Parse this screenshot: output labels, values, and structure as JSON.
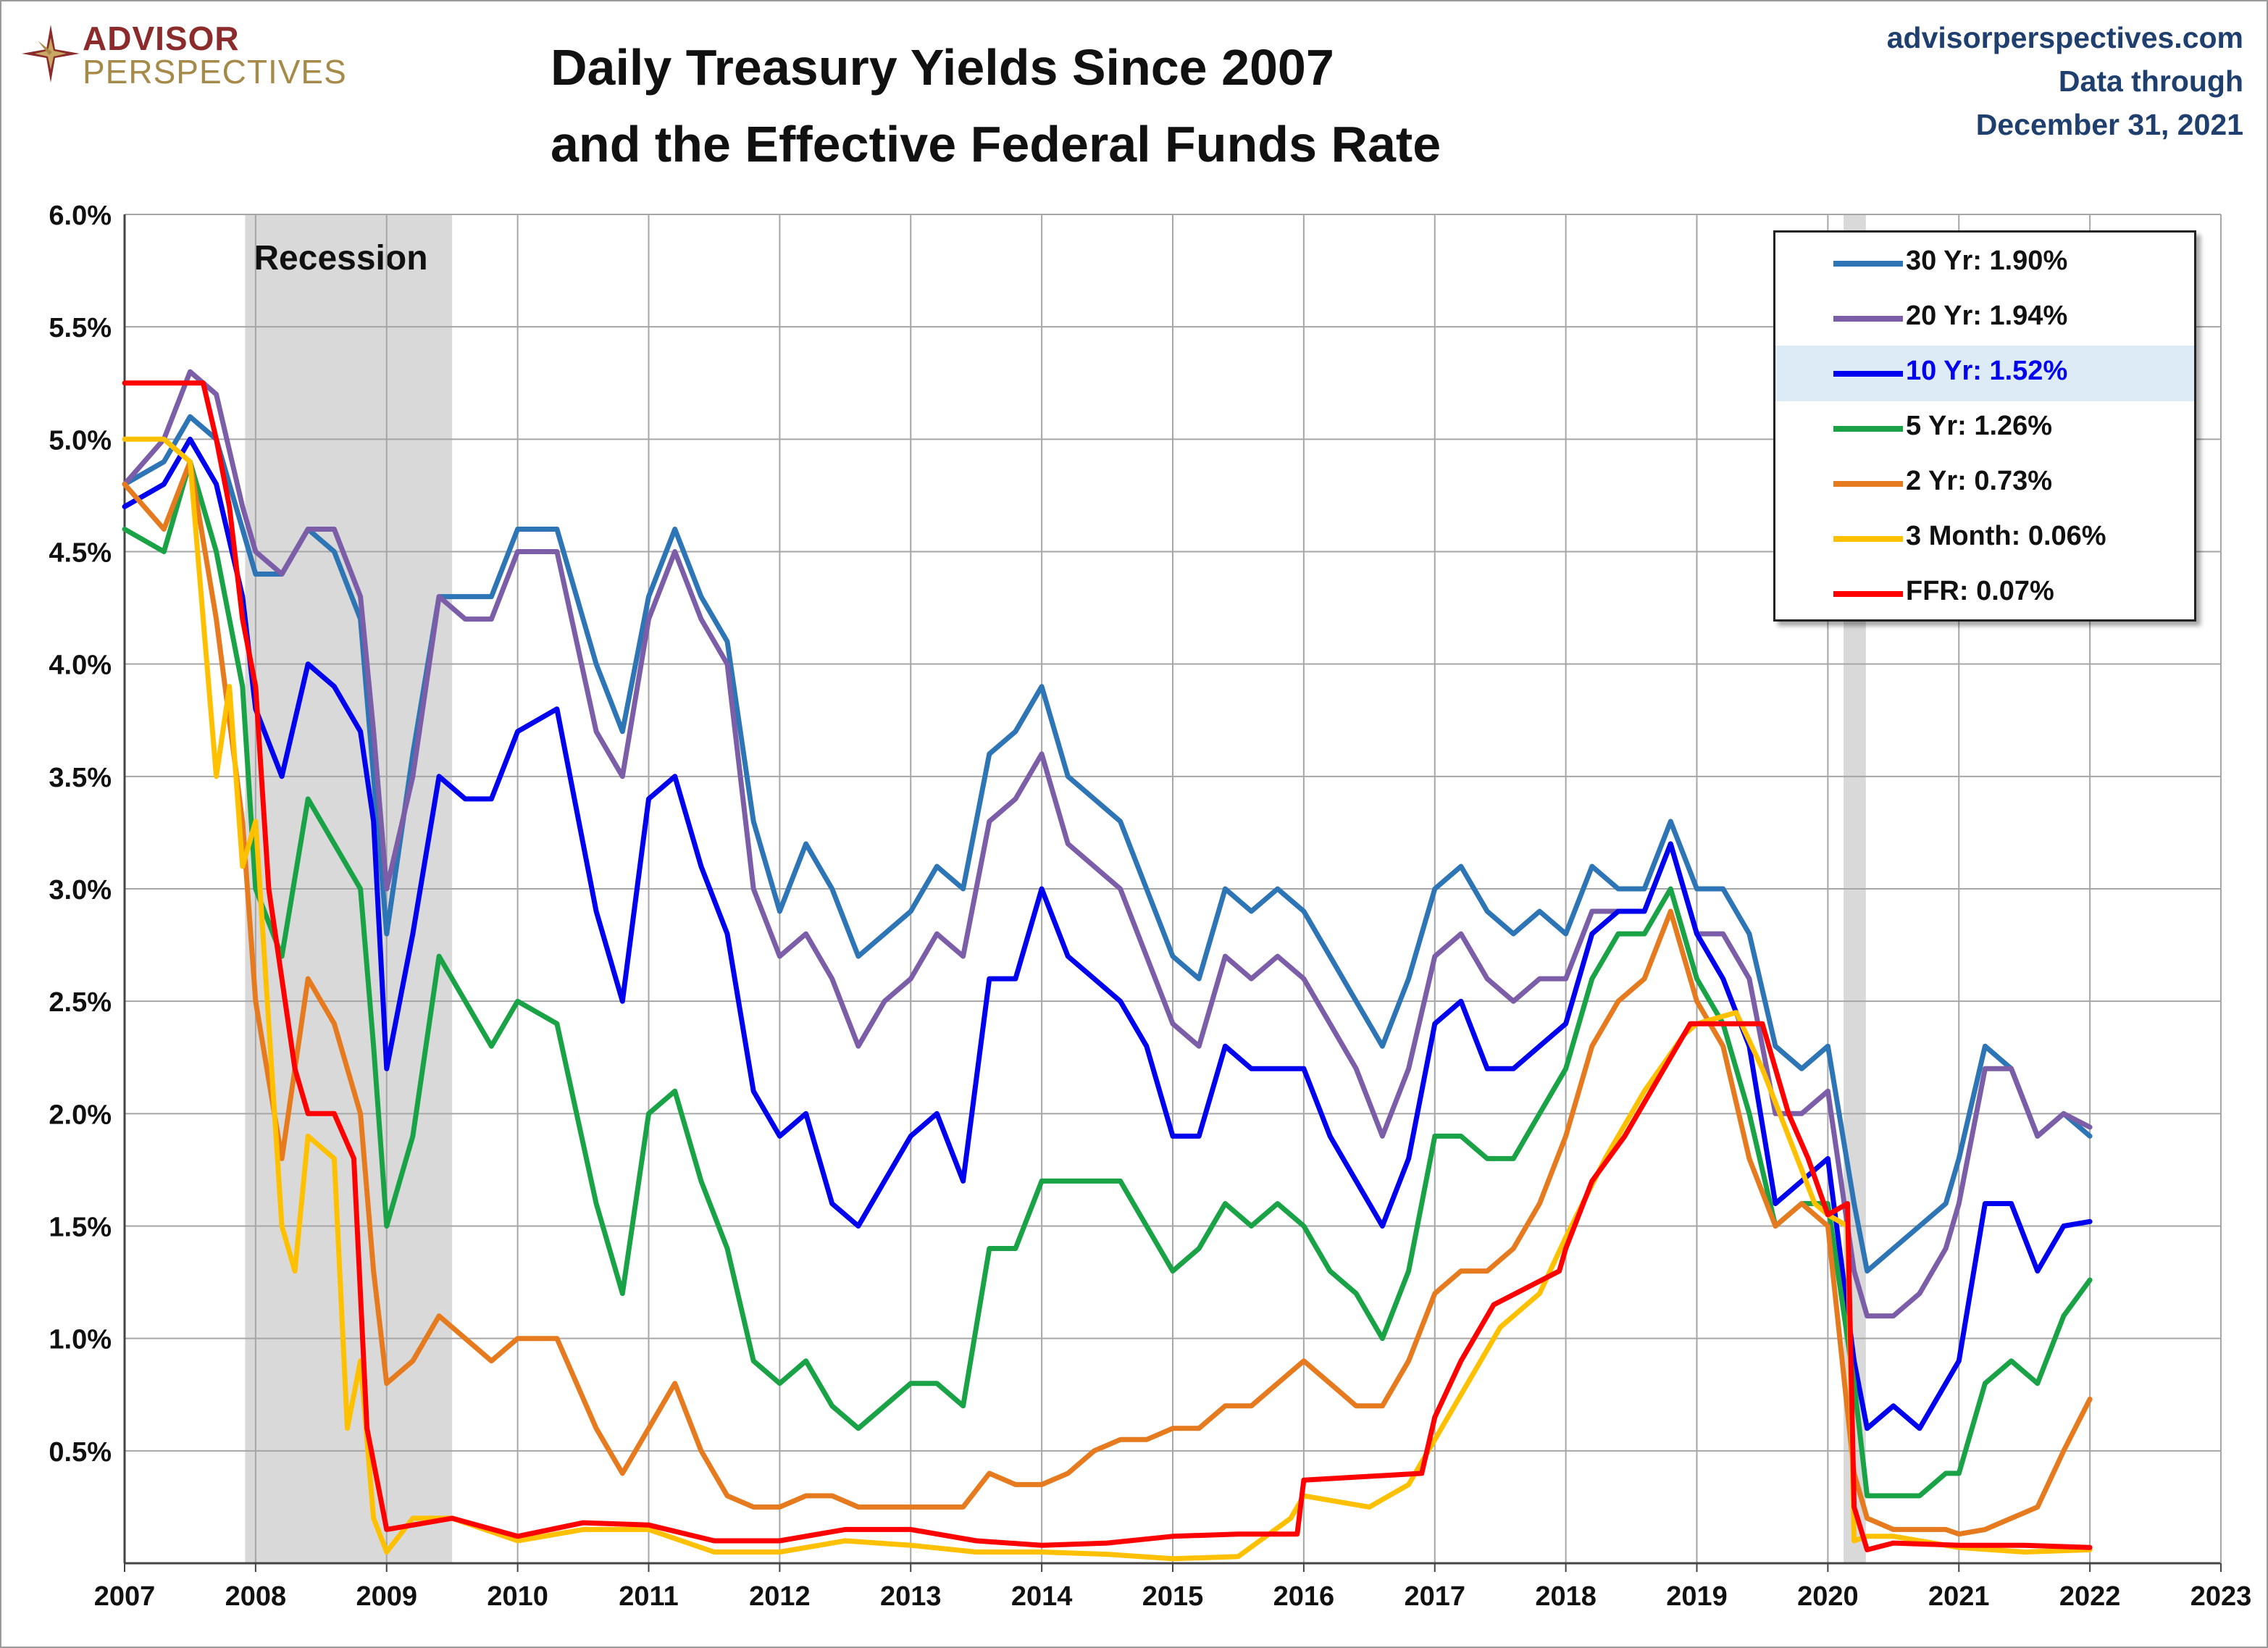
{
  "brand": {
    "line1": "ADVISOR",
    "line2": "PERSPECTIVES"
  },
  "header": {
    "title_line1": "Daily Treasury Yields Since 2007",
    "title_line2": "and the Effective Federal Funds Rate",
    "site": "advisorperspectives.com",
    "data_through_label": "Data through",
    "data_through_date": "December 31, 2021"
  },
  "chart_data": {
    "type": "line",
    "title": "Daily Treasury Yields Since 2007 and the Effective Federal Funds Rate",
    "xlim": [
      2007,
      2023
    ],
    "ylim": [
      0,
      6
    ],
    "x_ticks": [
      "2007",
      "2008",
      "2009",
      "2010",
      "2011",
      "2012",
      "2013",
      "2014",
      "2015",
      "2016",
      "2017",
      "2018",
      "2019",
      "2020",
      "2021",
      "2022",
      "2023"
    ],
    "y_ticks": [
      "0.5%",
      "1.0%",
      "1.5%",
      "2.0%",
      "2.5%",
      "3.0%",
      "3.5%",
      "4.0%",
      "4.5%",
      "5.0%",
      "5.5%",
      "6.0%"
    ],
    "grid": true,
    "legend_position": "top-right",
    "recessions": [
      {
        "start": 2007.92,
        "end": 2009.5,
        "label": "Recession"
      },
      {
        "start": 2020.12,
        "end": 2020.29,
        "label": ""
      }
    ],
    "series": [
      {
        "name": "30 Yr: 1.90%",
        "color": "#2e75b6",
        "x": [
          2007.0,
          2007.3,
          2007.5,
          2007.7,
          2007.9,
          2008.0,
          2008.2,
          2008.4,
          2008.6,
          2008.8,
          2008.9,
          2009.0,
          2009.2,
          2009.4,
          2009.6,
          2009.8,
          2010.0,
          2010.3,
          2010.6,
          2010.8,
          2011.0,
          2011.2,
          2011.4,
          2011.6,
          2011.8,
          2012.0,
          2012.2,
          2012.4,
          2012.6,
          2012.8,
          2013.0,
          2013.2,
          2013.4,
          2013.6,
          2013.8,
          2014.0,
          2014.2,
          2014.4,
          2014.6,
          2014.8,
          2015.0,
          2015.2,
          2015.4,
          2015.6,
          2015.8,
          2016.0,
          2016.2,
          2016.4,
          2016.6,
          2016.8,
          2017.0,
          2017.2,
          2017.4,
          2017.6,
          2017.8,
          2018.0,
          2018.2,
          2018.4,
          2018.6,
          2018.8,
          2019.0,
          2019.2,
          2019.4,
          2019.6,
          2019.8,
          2020.0,
          2020.2,
          2020.3,
          2020.5,
          2020.7,
          2020.9,
          2021.0,
          2021.2,
          2021.4,
          2021.6,
          2021.8,
          2022.0
        ],
        "values": [
          4.8,
          4.9,
          5.1,
          5.0,
          4.6,
          4.4,
          4.4,
          4.6,
          4.5,
          4.2,
          3.5,
          2.8,
          3.6,
          4.3,
          4.3,
          4.3,
          4.6,
          4.6,
          4.0,
          3.7,
          4.3,
          4.6,
          4.3,
          4.1,
          3.3,
          2.9,
          3.2,
          3.0,
          2.7,
          2.8,
          2.9,
          3.1,
          3.0,
          3.6,
          3.7,
          3.9,
          3.5,
          3.4,
          3.3,
          3.0,
          2.7,
          2.6,
          3.0,
          2.9,
          3.0,
          2.9,
          2.7,
          2.5,
          2.3,
          2.6,
          3.0,
          3.1,
          2.9,
          2.8,
          2.9,
          2.8,
          3.1,
          3.0,
          3.0,
          3.3,
          3.0,
          3.0,
          2.8,
          2.3,
          2.2,
          2.3,
          1.6,
          1.3,
          1.4,
          1.5,
          1.6,
          1.8,
          2.3,
          2.2,
          1.9,
          2.0,
          1.9
        ]
      },
      {
        "name": "20 Yr: 1.94%",
        "color": "#7b5ea7",
        "x": [
          2007.0,
          2007.3,
          2007.5,
          2007.7,
          2007.9,
          2008.0,
          2008.2,
          2008.4,
          2008.6,
          2008.8,
          2008.9,
          2009.0,
          2009.2,
          2009.4,
          2009.6,
          2009.8,
          2010.0,
          2010.3,
          2010.6,
          2010.8,
          2011.0,
          2011.2,
          2011.4,
          2011.6,
          2011.8,
          2012.0,
          2012.2,
          2012.4,
          2012.6,
          2012.8,
          2013.0,
          2013.2,
          2013.4,
          2013.6,
          2013.8,
          2014.0,
          2014.2,
          2014.4,
          2014.6,
          2014.8,
          2015.0,
          2015.2,
          2015.4,
          2015.6,
          2015.8,
          2016.0,
          2016.2,
          2016.4,
          2016.6,
          2016.8,
          2017.0,
          2017.2,
          2017.4,
          2017.6,
          2017.8,
          2018.0,
          2018.2,
          2018.4,
          2018.6,
          2018.8,
          2019.0,
          2019.2,
          2019.4,
          2019.6,
          2019.8,
          2020.0,
          2020.2,
          2020.3,
          2020.5,
          2020.7,
          2020.9,
          2021.0,
          2021.2,
          2021.4,
          2021.6,
          2021.8,
          2022.0
        ],
        "values": [
          4.8,
          5.0,
          5.3,
          5.2,
          4.7,
          4.5,
          4.4,
          4.6,
          4.6,
          4.3,
          3.7,
          3.0,
          3.5,
          4.3,
          4.2,
          4.2,
          4.5,
          4.5,
          3.7,
          3.5,
          4.2,
          4.5,
          4.2,
          4.0,
          3.0,
          2.7,
          2.8,
          2.6,
          2.3,
          2.5,
          2.6,
          2.8,
          2.7,
          3.3,
          3.4,
          3.6,
          3.2,
          3.1,
          3.0,
          2.7,
          2.4,
          2.3,
          2.7,
          2.6,
          2.7,
          2.6,
          2.4,
          2.2,
          1.9,
          2.2,
          2.7,
          2.8,
          2.6,
          2.5,
          2.6,
          2.6,
          2.9,
          2.9,
          2.9,
          3.2,
          2.8,
          2.8,
          2.6,
          2.0,
          2.0,
          2.1,
          1.3,
          1.1,
          1.1,
          1.2,
          1.4,
          1.6,
          2.2,
          2.2,
          1.9,
          2.0,
          1.94
        ]
      },
      {
        "name": "10 Yr: 1.52%",
        "color": "#0000ee",
        "x": [
          2007.0,
          2007.3,
          2007.5,
          2007.7,
          2007.9,
          2008.0,
          2008.2,
          2008.4,
          2008.6,
          2008.8,
          2008.9,
          2009.0,
          2009.2,
          2009.4,
          2009.6,
          2009.8,
          2010.0,
          2010.3,
          2010.6,
          2010.8,
          2011.0,
          2011.2,
          2011.4,
          2011.6,
          2011.8,
          2012.0,
          2012.2,
          2012.4,
          2012.6,
          2012.8,
          2013.0,
          2013.2,
          2013.4,
          2013.6,
          2013.8,
          2014.0,
          2014.2,
          2014.4,
          2014.6,
          2014.8,
          2015.0,
          2015.2,
          2015.4,
          2015.6,
          2015.8,
          2016.0,
          2016.2,
          2016.4,
          2016.6,
          2016.8,
          2017.0,
          2017.2,
          2017.4,
          2017.6,
          2017.8,
          2018.0,
          2018.2,
          2018.4,
          2018.6,
          2018.8,
          2019.0,
          2019.2,
          2019.4,
          2019.6,
          2019.8,
          2020.0,
          2020.2,
          2020.3,
          2020.5,
          2020.7,
          2020.9,
          2021.0,
          2021.2,
          2021.4,
          2021.6,
          2021.8,
          2022.0
        ],
        "values": [
          4.7,
          4.8,
          5.0,
          4.8,
          4.3,
          3.8,
          3.5,
          4.0,
          3.9,
          3.7,
          3.3,
          2.2,
          2.8,
          3.5,
          3.4,
          3.4,
          3.7,
          3.8,
          2.9,
          2.5,
          3.4,
          3.5,
          3.1,
          2.8,
          2.1,
          1.9,
          2.0,
          1.6,
          1.5,
          1.7,
          1.9,
          2.0,
          1.7,
          2.6,
          2.6,
          3.0,
          2.7,
          2.6,
          2.5,
          2.3,
          1.9,
          1.9,
          2.3,
          2.2,
          2.2,
          2.2,
          1.9,
          1.7,
          1.5,
          1.8,
          2.4,
          2.5,
          2.2,
          2.2,
          2.3,
          2.4,
          2.8,
          2.9,
          2.9,
          3.2,
          2.8,
          2.6,
          2.3,
          1.6,
          1.7,
          1.8,
          0.9,
          0.6,
          0.7,
          0.6,
          0.8,
          0.9,
          1.6,
          1.6,
          1.3,
          1.5,
          1.52
        ]
      },
      {
        "name": "5 Yr: 1.26%",
        "color": "#1aa346",
        "x": [
          2007.0,
          2007.3,
          2007.5,
          2007.7,
          2007.9,
          2008.0,
          2008.2,
          2008.4,
          2008.6,
          2008.8,
          2008.9,
          2009.0,
          2009.2,
          2009.4,
          2009.6,
          2009.8,
          2010.0,
          2010.3,
          2010.6,
          2010.8,
          2011.0,
          2011.2,
          2011.4,
          2011.6,
          2011.8,
          2012.0,
          2012.2,
          2012.4,
          2012.6,
          2012.8,
          2013.0,
          2013.2,
          2013.4,
          2013.6,
          2013.8,
          2014.0,
          2014.2,
          2014.4,
          2014.6,
          2014.8,
          2015.0,
          2015.2,
          2015.4,
          2015.6,
          2015.8,
          2016.0,
          2016.2,
          2016.4,
          2016.6,
          2016.8,
          2017.0,
          2017.2,
          2017.4,
          2017.6,
          2017.8,
          2018.0,
          2018.2,
          2018.4,
          2018.6,
          2018.8,
          2019.0,
          2019.2,
          2019.4,
          2019.6,
          2019.8,
          2020.0,
          2020.2,
          2020.3,
          2020.5,
          2020.7,
          2020.9,
          2021.0,
          2021.2,
          2021.4,
          2021.6,
          2021.8,
          2022.0
        ],
        "values": [
          4.6,
          4.5,
          4.9,
          4.5,
          3.9,
          3.0,
          2.7,
          3.4,
          3.2,
          3.0,
          2.3,
          1.5,
          1.9,
          2.7,
          2.5,
          2.3,
          2.5,
          2.4,
          1.6,
          1.2,
          2.0,
          2.1,
          1.7,
          1.4,
          0.9,
          0.8,
          0.9,
          0.7,
          0.6,
          0.7,
          0.8,
          0.8,
          0.7,
          1.4,
          1.4,
          1.7,
          1.7,
          1.7,
          1.7,
          1.5,
          1.3,
          1.4,
          1.6,
          1.5,
          1.6,
          1.5,
          1.3,
          1.2,
          1.0,
          1.3,
          1.9,
          1.9,
          1.8,
          1.8,
          2.0,
          2.2,
          2.6,
          2.8,
          2.8,
          3.0,
          2.6,
          2.4,
          2.0,
          1.5,
          1.6,
          1.6,
          0.8,
          0.3,
          0.3,
          0.3,
          0.4,
          0.4,
          0.8,
          0.9,
          0.8,
          1.1,
          1.26
        ]
      },
      {
        "name": "2 Yr: 0.73%",
        "color": "#e67a1e",
        "x": [
          2007.0,
          2007.3,
          2007.5,
          2007.7,
          2007.9,
          2008.0,
          2008.2,
          2008.4,
          2008.6,
          2008.8,
          2008.9,
          2009.0,
          2009.2,
          2009.4,
          2009.6,
          2009.8,
          2010.0,
          2010.3,
          2010.6,
          2010.8,
          2011.0,
          2011.2,
          2011.4,
          2011.6,
          2011.8,
          2012.0,
          2012.2,
          2012.4,
          2012.6,
          2012.8,
          2013.0,
          2013.2,
          2013.4,
          2013.6,
          2013.8,
          2014.0,
          2014.2,
          2014.4,
          2014.6,
          2014.8,
          2015.0,
          2015.2,
          2015.4,
          2015.6,
          2015.8,
          2016.0,
          2016.2,
          2016.4,
          2016.6,
          2016.8,
          2017.0,
          2017.2,
          2017.4,
          2017.6,
          2017.8,
          2018.0,
          2018.2,
          2018.4,
          2018.6,
          2018.8,
          2019.0,
          2019.2,
          2019.4,
          2019.6,
          2019.8,
          2020.0,
          2020.2,
          2020.3,
          2020.5,
          2020.7,
          2020.9,
          2021.0,
          2021.2,
          2021.4,
          2021.6,
          2021.8,
          2022.0
        ],
        "values": [
          4.8,
          4.6,
          4.9,
          4.2,
          3.3,
          2.5,
          1.8,
          2.6,
          2.4,
          2.0,
          1.3,
          0.8,
          0.9,
          1.1,
          1.0,
          0.9,
          1.0,
          1.0,
          0.6,
          0.4,
          0.6,
          0.8,
          0.5,
          0.3,
          0.25,
          0.25,
          0.3,
          0.3,
          0.25,
          0.25,
          0.25,
          0.25,
          0.25,
          0.4,
          0.35,
          0.35,
          0.4,
          0.5,
          0.55,
          0.55,
          0.6,
          0.6,
          0.7,
          0.7,
          0.8,
          0.9,
          0.8,
          0.7,
          0.7,
          0.9,
          1.2,
          1.3,
          1.3,
          1.4,
          1.6,
          1.9,
          2.3,
          2.5,
          2.6,
          2.9,
          2.5,
          2.3,
          1.8,
          1.5,
          1.6,
          1.5,
          0.4,
          0.2,
          0.15,
          0.15,
          0.15,
          0.13,
          0.15,
          0.2,
          0.25,
          0.5,
          0.73
        ]
      },
      {
        "name": "3 Month: 0.06%",
        "color": "#ffc000",
        "x": [
          2007.0,
          2007.3,
          2007.5,
          2007.6,
          2007.7,
          2007.8,
          2007.9,
          2008.0,
          2008.2,
          2008.3,
          2008.4,
          2008.6,
          2008.7,
          2008.8,
          2008.9,
          2009.0,
          2009.2,
          2009.5,
          2010.0,
          2010.5,
          2011.0,
          2011.5,
          2012.0,
          2012.5,
          2013.0,
          2013.5,
          2014.0,
          2014.5,
          2015.0,
          2015.5,
          2015.9,
          2016.0,
          2016.5,
          2016.8,
          2017.0,
          2017.2,
          2017.5,
          2017.8,
          2018.0,
          2018.3,
          2018.6,
          2018.9,
          2019.0,
          2019.3,
          2019.5,
          2019.7,
          2019.9,
          2020.0,
          2020.15,
          2020.2,
          2020.3,
          2020.5,
          2021.0,
          2021.5,
          2022.0
        ],
        "values": [
          5.0,
          5.0,
          4.9,
          4.2,
          3.5,
          3.9,
          3.1,
          3.3,
          1.5,
          1.3,
          1.9,
          1.8,
          0.6,
          0.9,
          0.2,
          0.05,
          0.2,
          0.2,
          0.1,
          0.15,
          0.15,
          0.05,
          0.05,
          0.1,
          0.08,
          0.05,
          0.05,
          0.04,
          0.02,
          0.03,
          0.2,
          0.3,
          0.25,
          0.35,
          0.55,
          0.75,
          1.05,
          1.2,
          1.45,
          1.8,
          2.1,
          2.35,
          2.4,
          2.45,
          2.2,
          1.9,
          1.6,
          1.55,
          1.5,
          0.1,
          0.12,
          0.12,
          0.07,
          0.05,
          0.06
        ]
      },
      {
        "name": "FFR: 0.07%",
        "color": "#ff0000",
        "x": [
          2007.0,
          2007.6,
          2007.7,
          2007.8,
          2007.9,
          2008.0,
          2008.1,
          2008.2,
          2008.3,
          2008.4,
          2008.6,
          2008.75,
          2008.85,
          2009.0,
          2009.5,
          2010.0,
          2010.5,
          2011.0,
          2011.5,
          2012.0,
          2012.5,
          2013.0,
          2013.5,
          2014.0,
          2014.5,
          2015.0,
          2015.5,
          2015.95,
          2016.0,
          2016.9,
          2017.0,
          2017.2,
          2017.45,
          2017.95,
          2018.0,
          2018.2,
          2018.45,
          2018.7,
          2018.95,
          2019.5,
          2019.6,
          2019.7,
          2019.85,
          2020.0,
          2020.15,
          2020.2,
          2020.3,
          2020.5,
          2021.0,
          2021.5,
          2022.0
        ],
        "values": [
          5.25,
          5.25,
          5.0,
          4.7,
          4.2,
          3.9,
          3.0,
          2.6,
          2.2,
          2.0,
          2.0,
          1.8,
          0.6,
          0.15,
          0.2,
          0.12,
          0.18,
          0.17,
          0.1,
          0.1,
          0.15,
          0.15,
          0.1,
          0.08,
          0.09,
          0.12,
          0.13,
          0.13,
          0.37,
          0.4,
          0.65,
          0.9,
          1.15,
          1.3,
          1.4,
          1.7,
          1.9,
          2.15,
          2.4,
          2.4,
          2.2,
          2.0,
          1.8,
          1.55,
          1.6,
          0.25,
          0.06,
          0.09,
          0.08,
          0.08,
          0.07
        ]
      }
    ]
  }
}
